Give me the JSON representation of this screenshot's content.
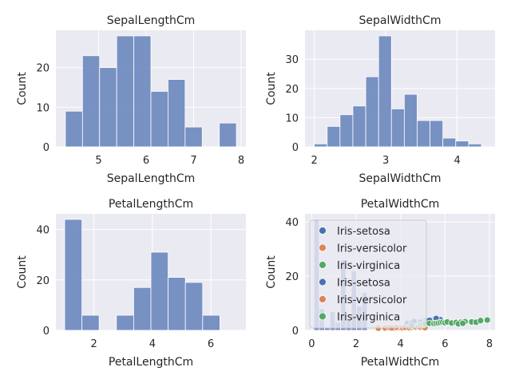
{
  "chart_data": [
    {
      "type": "bar",
      "title": "SepalLengthCm",
      "xlabel": "SepalLengthCm",
      "ylabel": "Count",
      "xlim": [
        4.1,
        8.1
      ],
      "ylim": [
        0,
        29.4
      ],
      "xticks": [
        5,
        6,
        7,
        8
      ],
      "yticks": [
        0,
        10,
        20
      ],
      "grid": true,
      "bar_color": "#6c87be",
      "bins": [
        {
          "x0": 4.3,
          "x1": 4.66,
          "value": 9
        },
        {
          "x0": 4.66,
          "x1": 5.02,
          "value": 23
        },
        {
          "x0": 5.02,
          "x1": 5.38,
          "value": 20
        },
        {
          "x0": 5.38,
          "x1": 5.74,
          "value": 28
        },
        {
          "x0": 5.74,
          "x1": 6.1,
          "value": 28
        },
        {
          "x0": 6.1,
          "x1": 6.46,
          "value": 14
        },
        {
          "x0": 6.46,
          "x1": 6.82,
          "value": 17
        },
        {
          "x0": 6.82,
          "x1": 7.18,
          "value": 5
        },
        {
          "x0": 7.18,
          "x1": 7.54,
          "value": 0
        },
        {
          "x0": 7.54,
          "x1": 7.9,
          "value": 6
        }
      ]
    },
    {
      "type": "bar",
      "title": "SepalWidthCm",
      "xlabel": "SepalWidthCm",
      "ylabel": "Count",
      "xlim": [
        1.87,
        4.53
      ],
      "ylim": [
        0,
        39.9
      ],
      "xticks": [
        2,
        3,
        4
      ],
      "yticks": [
        0,
        10,
        20,
        30
      ],
      "grid": true,
      "bar_color": "#6c87be",
      "bins": [
        {
          "x0": 2.0,
          "x1": 2.18,
          "value": 1
        },
        {
          "x0": 2.18,
          "x1": 2.36,
          "value": 7
        },
        {
          "x0": 2.36,
          "x1": 2.54,
          "value": 11
        },
        {
          "x0": 2.54,
          "x1": 2.72,
          "value": 14
        },
        {
          "x0": 2.72,
          "x1": 2.9,
          "value": 24
        },
        {
          "x0": 2.9,
          "x1": 3.08,
          "value": 38
        },
        {
          "x0": 3.08,
          "x1": 3.26,
          "value": 13
        },
        {
          "x0": 3.26,
          "x1": 3.44,
          "value": 18
        },
        {
          "x0": 3.44,
          "x1": 3.62,
          "value": 9
        },
        {
          "x0": 3.62,
          "x1": 3.8,
          "value": 9
        },
        {
          "x0": 3.8,
          "x1": 3.98,
          "value": 3
        },
        {
          "x0": 3.98,
          "x1": 4.16,
          "value": 2
        },
        {
          "x0": 4.16,
          "x1": 4.34,
          "value": 1
        }
      ]
    },
    {
      "type": "bar",
      "title": "PetalLengthCm",
      "xlabel": "PetalLengthCm",
      "ylabel": "Count",
      "xlim": [
        0.7,
        7.2
      ],
      "ylim": [
        0,
        46.2
      ],
      "xticks": [
        2,
        4,
        6
      ],
      "yticks": [
        0,
        20,
        40
      ],
      "grid": true,
      "bar_color": "#6c87be",
      "bins": [
        {
          "x0": 1.0,
          "x1": 1.59,
          "value": 44
        },
        {
          "x0": 1.59,
          "x1": 2.18,
          "value": 6
        },
        {
          "x0": 2.18,
          "x1": 2.77,
          "value": 0
        },
        {
          "x0": 2.77,
          "x1": 3.36,
          "value": 6
        },
        {
          "x0": 3.36,
          "x1": 3.95,
          "value": 17
        },
        {
          "x0": 3.95,
          "x1": 4.54,
          "value": 31
        },
        {
          "x0": 4.54,
          "x1": 5.13,
          "value": 21
        },
        {
          "x0": 5.13,
          "x1": 5.72,
          "value": 19
        },
        {
          "x0": 5.72,
          "x1": 6.31,
          "value": 6
        },
        {
          "x0": 6.31,
          "x1": 6.9,
          "value": 0
        }
      ]
    },
    {
      "type": "scatter",
      "title": "PetalWidthCm",
      "xlabel": "PetalWidthCm",
      "ylabel": "Count",
      "xlim": [
        -0.3,
        8.25
      ],
      "ylim": [
        0,
        43
      ],
      "xticks": [
        0,
        2,
        4,
        6,
        8
      ],
      "yticks": [
        0,
        20,
        40
      ],
      "grid": true,
      "bar_color": "#6c87be",
      "bins": [
        {
          "x0": 0.1,
          "x1": 0.34,
          "value": 41
        },
        {
          "x0": 0.34,
          "x1": 0.58,
          "value": 8
        },
        {
          "x0": 0.58,
          "x1": 0.82,
          "value": 1
        },
        {
          "x0": 0.82,
          "x1": 1.06,
          "value": 7
        },
        {
          "x0": 1.06,
          "x1": 1.3,
          "value": 3
        },
        {
          "x0": 1.3,
          "x1": 1.54,
          "value": 26
        },
        {
          "x0": 1.54,
          "x1": 1.78,
          "value": 4
        },
        {
          "x0": 1.78,
          "x1": 2.02,
          "value": 22
        },
        {
          "x0": 2.02,
          "x1": 2.26,
          "value": 9
        },
        {
          "x0": 2.26,
          "x1": 2.5,
          "value": 14
        }
      ],
      "series": [
        {
          "name": "Iris-setosa",
          "color": "#4c72b0",
          "points": [
            [
              4.3,
              2.5
            ],
            [
              4.5,
              2.8
            ],
            [
              4.8,
              3.1
            ],
            [
              5.0,
              3.4
            ],
            [
              5.1,
              3.6
            ],
            [
              5.2,
              3.3
            ],
            [
              5.4,
              3.8
            ],
            [
              5.5,
              3.5
            ],
            [
              5.7,
              4.2
            ],
            [
              5.8,
              3.9
            ],
            [
              5.0,
              2.9
            ],
            [
              4.7,
              2.6
            ],
            [
              5.3,
              3.7
            ],
            [
              5.6,
              4.4
            ],
            [
              4.9,
              3.0
            ],
            [
              4.6,
              3.2
            ]
          ]
        },
        {
          "name": "Iris-versicolor",
          "color": "#dd8452",
          "points": [
            [
              3.0,
              0.8
            ],
            [
              3.3,
              0.9
            ],
            [
              3.5,
              1.0
            ],
            [
              3.7,
              0.8
            ],
            [
              3.9,
              0.9
            ],
            [
              4.0,
              1.0
            ],
            [
              4.1,
              0.9
            ],
            [
              4.2,
              1.1
            ],
            [
              4.4,
              0.9
            ],
            [
              4.5,
              1.1
            ],
            [
              4.6,
              1.3
            ],
            [
              4.7,
              1.2
            ],
            [
              4.8,
              1.4
            ],
            [
              4.9,
              1.1
            ],
            [
              5.0,
              1.2
            ],
            [
              5.1,
              1.0
            ],
            [
              3.8,
              1.1
            ],
            [
              3.6,
              0.9
            ]
          ]
        },
        {
          "name": "Iris-virginica",
          "color": "#55a868",
          "points": [
            [
              4.5,
              1.8
            ],
            [
              4.9,
              2.0
            ],
            [
              5.0,
              2.2
            ],
            [
              5.1,
              2.4
            ],
            [
              5.3,
              2.6
            ],
            [
              5.5,
              2.5
            ],
            [
              5.6,
              2.6
            ],
            [
              5.7,
              2.7
            ],
            [
              5.8,
              2.9
            ],
            [
              5.9,
              3.0
            ],
            [
              6.0,
              2.8
            ],
            [
              6.1,
              3.1
            ],
            [
              6.3,
              2.7
            ],
            [
              6.5,
              2.9
            ],
            [
              6.7,
              3.0
            ],
            [
              6.9,
              3.2
            ],
            [
              7.2,
              3.1
            ],
            [
              7.4,
              3.0
            ],
            [
              7.6,
              3.6
            ],
            [
              7.9,
              3.8
            ],
            [
              6.6,
              2.4
            ],
            [
              6.8,
              2.6
            ]
          ]
        }
      ],
      "legend": {
        "placement": "upper-left",
        "entries": [
          {
            "label": "Iris-setosa",
            "color": "#4c72b0"
          },
          {
            "label": "Iris-versicolor",
            "color": "#dd8452"
          },
          {
            "label": "Iris-virginica",
            "color": "#55a868"
          },
          {
            "label": "Iris-setosa",
            "color": "#4c72b0"
          },
          {
            "label": "Iris-versicolor",
            "color": "#dd8452"
          },
          {
            "label": "Iris-virginica",
            "color": "#55a868"
          }
        ]
      }
    }
  ]
}
